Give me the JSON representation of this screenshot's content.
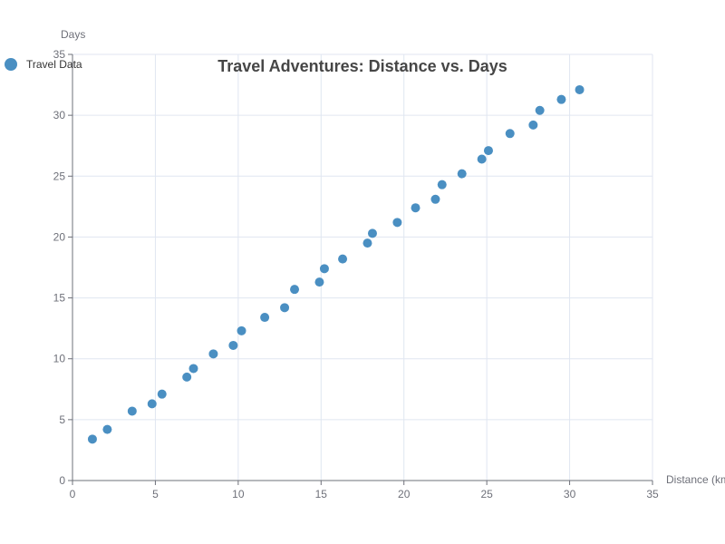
{
  "chart_data": {
    "type": "scatter",
    "title": "Travel Adventures: Distance vs. Days",
    "xlabel": "Distance (km)",
    "ylabel": "Days",
    "xlim": [
      0,
      35
    ],
    "ylim": [
      0,
      35
    ],
    "x_ticks": [
      "0",
      "5",
      "10",
      "15",
      "20",
      "25",
      "30",
      "35"
    ],
    "y_ticks": [
      "0",
      "5",
      "10",
      "15",
      "20",
      "25",
      "30",
      "35"
    ],
    "grid": true,
    "legend_position": "top-left",
    "color": "#4a8fc2",
    "series": [
      {
        "name": "Travel Data",
        "points": [
          [
            1.2,
            3.4
          ],
          [
            2.1,
            4.2
          ],
          [
            3.6,
            5.7
          ],
          [
            4.8,
            6.3
          ],
          [
            5.4,
            7.1
          ],
          [
            6.9,
            8.5
          ],
          [
            7.3,
            9.2
          ],
          [
            8.5,
            10.4
          ],
          [
            9.7,
            11.1
          ],
          [
            10.2,
            12.3
          ],
          [
            11.6,
            13.4
          ],
          [
            12.8,
            14.2
          ],
          [
            13.4,
            15.7
          ],
          [
            14.9,
            16.3
          ],
          [
            15.2,
            17.4
          ],
          [
            16.3,
            18.2
          ],
          [
            17.8,
            19.5
          ],
          [
            18.1,
            20.3
          ],
          [
            19.6,
            21.2
          ],
          [
            20.7,
            22.4
          ],
          [
            21.9,
            23.1
          ],
          [
            22.3,
            24.3
          ],
          [
            23.5,
            25.2
          ],
          [
            24.7,
            26.4
          ],
          [
            25.1,
            27.1
          ],
          [
            26.4,
            28.5
          ],
          [
            27.8,
            29.2
          ],
          [
            28.2,
            30.4
          ],
          [
            29.5,
            31.3
          ],
          [
            30.6,
            32.1
          ]
        ]
      }
    ]
  }
}
